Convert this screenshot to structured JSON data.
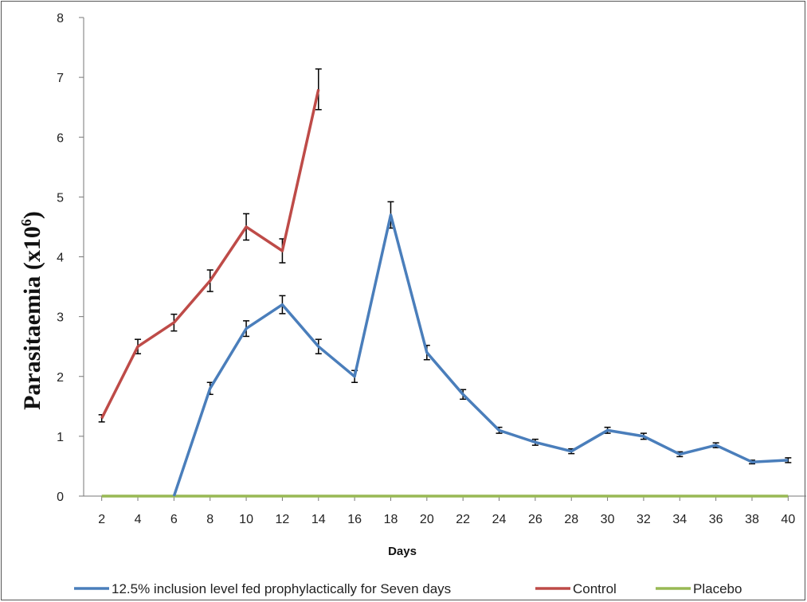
{
  "chart_data": {
    "type": "line",
    "title": "",
    "xlabel": "Days",
    "ylabel_main": "Parasitaemia (x10",
    "ylabel_sup": "6",
    "ylabel_end": ")",
    "x": [
      2,
      4,
      6,
      8,
      10,
      12,
      14,
      16,
      18,
      20,
      22,
      24,
      26,
      28,
      30,
      32,
      34,
      36,
      38,
      40
    ],
    "x_ticks": [
      "2",
      "4",
      "6",
      "8",
      "10",
      "12",
      "14",
      "16",
      "18",
      "20",
      "22",
      "24",
      "26",
      "28",
      "30",
      "32",
      "34",
      "36",
      "38",
      "40"
    ],
    "y_ticks": [
      "0",
      "1",
      "2",
      "3",
      "4",
      "5",
      "6",
      "7",
      "8"
    ],
    "ylim": [
      0,
      8
    ],
    "grid": false,
    "legend_position": "bottom",
    "series": [
      {
        "name": "12.5% inclusion level fed prophylactically for Seven days",
        "color": "#4a7ebb",
        "x": [
          6,
          8,
          10,
          12,
          14,
          16,
          18,
          20,
          22,
          24,
          26,
          28,
          30,
          32,
          34,
          36,
          38,
          40
        ],
        "y": [
          0,
          1.8,
          2.8,
          3.2,
          2.5,
          2.0,
          4.7,
          2.4,
          1.7,
          1.1,
          0.9,
          0.75,
          1.1,
          1.0,
          0.7,
          0.85,
          0.57,
          0.6
        ],
        "err": [
          0,
          0.1,
          0.13,
          0.15,
          0.12,
          0.1,
          0.22,
          0.12,
          0.08,
          0.05,
          0.05,
          0.04,
          0.05,
          0.05,
          0.04,
          0.04,
          0.03,
          0.04
        ]
      },
      {
        "name": "Control",
        "color": "#be4b48",
        "x": [
          2,
          4,
          6,
          8,
          10,
          12,
          14
        ],
        "y": [
          1.3,
          2.5,
          2.9,
          3.6,
          4.5,
          4.1,
          6.8
        ],
        "err": [
          0.06,
          0.12,
          0.14,
          0.18,
          0.22,
          0.2,
          0.34
        ]
      },
      {
        "name": "Placebo",
        "color": "#98b954",
        "x": [
          2,
          40
        ],
        "y": [
          0,
          0
        ],
        "err": [
          0,
          0
        ]
      }
    ]
  }
}
